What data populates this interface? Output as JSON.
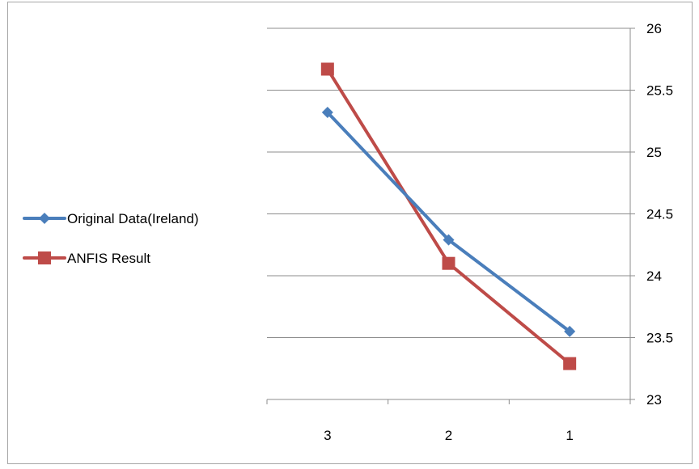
{
  "chart_data": {
    "type": "line",
    "title": "",
    "xlabel": "",
    "ylabel": "",
    "categories": [
      "3",
      "2",
      "1"
    ],
    "ylim": [
      23,
      26
    ],
    "y_ticks": [
      "23",
      "23.5",
      "24",
      "24.5",
      "25",
      "25.5",
      "26"
    ],
    "y_axis_side": "right",
    "grid": true,
    "legend_position": "left",
    "series": [
      {
        "name": "Original Data(Ireland)",
        "marker": "diamond",
        "color": "#4a7ebb",
        "values": [
          25.32,
          24.29,
          23.55
        ]
      },
      {
        "name": "ANFIS Result",
        "marker": "square",
        "color": "#be4b48",
        "values": [
          25.67,
          24.1,
          23.29
        ]
      }
    ]
  }
}
